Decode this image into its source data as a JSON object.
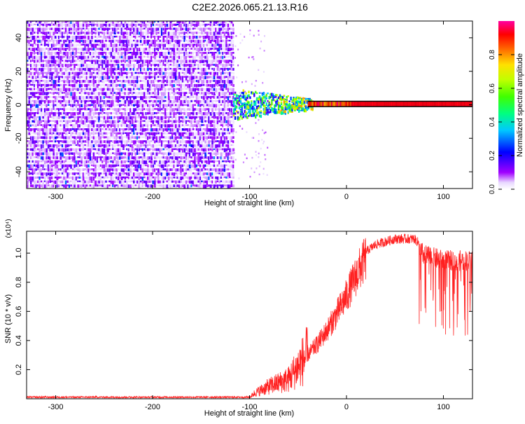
{
  "title": "C2E2.2026.065.21.13.R16",
  "chart_data": [
    {
      "type": "heatmap",
      "name": "spectrogram",
      "xlabel": "Height of straight line (km)",
      "ylabel": "Frequency (Hz)",
      "xlim": [
        -330,
        130
      ],
      "ylim": [
        -50,
        50
      ],
      "xticks": [
        -300,
        -200,
        -100,
        0,
        100
      ],
      "xtick_labels": [
        "-300",
        "-200",
        "-100",
        "0",
        "100"
      ],
      "yticks": [
        -40,
        -20,
        0,
        20,
        40
      ],
      "ytick_labels": [
        "-40",
        "-20",
        "0",
        "20",
        "40"
      ],
      "regions": [
        {
          "x_range": [
            -330,
            -117
          ],
          "freq_range": [
            -50,
            50
          ],
          "amplitude": "low (noise, ~0.05-0.15)"
        },
        {
          "x_range": [
            -117,
            -40
          ],
          "freq_range": [
            -10,
            10
          ],
          "amplitude": "mixed 0.2-0.7, centered near 0 Hz"
        },
        {
          "x_range": [
            -40,
            130
          ],
          "freq_range": [
            -1,
            2
          ],
          "amplitude": "high (~0.9-1.0), narrow line near 1 Hz"
        }
      ],
      "colorbar": {
        "label": "Normalized spectral amplitude",
        "range": [
          0,
          1
        ],
        "ticks": [
          0.0,
          0.2,
          0.4,
          0.6,
          0.8
        ],
        "tick_labels": [
          "0.0",
          "0.2",
          "0.4",
          "0.6",
          "0.8"
        ],
        "colors": [
          "#ffffff",
          "#a000ff",
          "#0000ff",
          "#00ffff",
          "#00ff00",
          "#ffff00",
          "#ff8000",
          "#ff0000",
          "#ff00a0"
        ]
      }
    },
    {
      "type": "line",
      "name": "snr",
      "xlabel": "Height of straight line (km)",
      "ylabel": "SNR (10 * v/v)",
      "yscale_label": "(x10⁴)",
      "xlim": [
        -330,
        130
      ],
      "ylim": [
        0,
        1.15
      ],
      "xticks": [
        -300,
        -200,
        -100,
        0,
        100
      ],
      "xtick_labels": [
        "-300",
        "-200",
        "-100",
        "0",
        "100"
      ],
      "yticks": [
        0.2,
        0.4,
        0.6,
        0.8,
        1.0
      ],
      "ytick_labels": [
        "0.2",
        "0.4",
        "0.6",
        "0.8",
        "1.0"
      ],
      "series": [
        {
          "color": "#ff0000",
          "points": [
            {
              "x": -330,
              "y": 0.01
            },
            {
              "x": -100,
              "y": 0.01
            },
            {
              "x": -95,
              "y": 0.04
            },
            {
              "x": -80,
              "y": 0.09
            },
            {
              "x": -60,
              "y": 0.14
            },
            {
              "x": -40,
              "y": 0.32
            },
            {
              "x": -30,
              "y": 0.4
            },
            {
              "x": -20,
              "y": 0.5
            },
            {
              "x": -10,
              "y": 0.62
            },
            {
              "x": 0,
              "y": 0.75
            },
            {
              "x": 10,
              "y": 0.9
            },
            {
              "x": 20,
              "y": 1.03
            },
            {
              "x": 30,
              "y": 1.08
            },
            {
              "x": 50,
              "y": 1.12
            },
            {
              "x": 70,
              "y": 1.12
            },
            {
              "x": 80,
              "y": 1.06
            },
            {
              "x": 100,
              "y": 1.02
            },
            {
              "x": 130,
              "y": 1.02
            }
          ]
        }
      ]
    }
  ]
}
